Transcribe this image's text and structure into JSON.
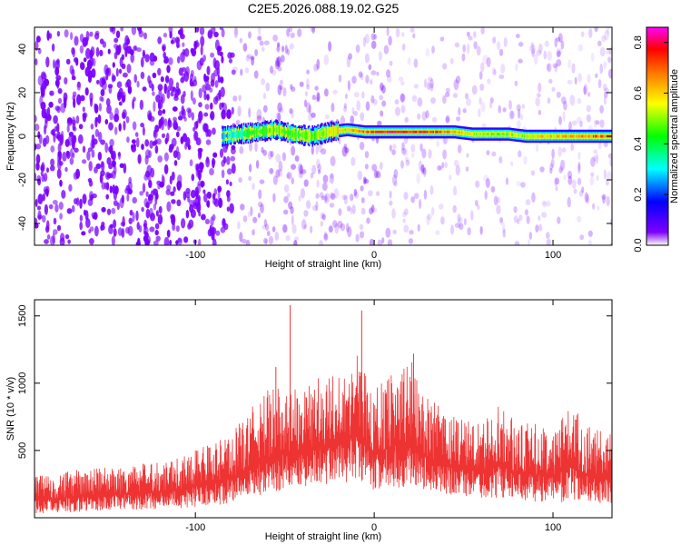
{
  "title": "C2E5.2026.088.19.02.G25",
  "chart_data": [
    {
      "type": "heatmap",
      "xlabel": "Height of straight line (km)",
      "ylabel": "Frequency (Hz)",
      "xlim": [
        -190,
        133
      ],
      "ylim": [
        -50,
        50
      ],
      "x_ticks": [
        -100,
        0,
        100
      ],
      "y_ticks": [
        -40,
        -20,
        0,
        20,
        40
      ],
      "grid": false,
      "colorbar": {
        "label": "Normalized spectral amplitude",
        "range": [
          0.0,
          0.86
        ],
        "ticks": [
          0.0,
          0.2,
          0.4,
          0.6,
          0.8
        ],
        "colors": [
          "#ffffff",
          "#7f00ff",
          "#0000ff",
          "#00ffff",
          "#00ff00",
          "#ffff00",
          "#ff8000",
          "#ff0000",
          "#ff00ff"
        ]
      },
      "signal_track": {
        "x": [
          -85,
          -75,
          -65,
          -55,
          -45,
          -35,
          -25,
          -15,
          -5,
          5,
          15,
          25,
          35,
          45,
          55,
          65,
          75,
          85,
          95,
          105,
          115,
          125,
          133
        ],
        "y": [
          0,
          1,
          2,
          3,
          1,
          0,
          2,
          3,
          2,
          2,
          2,
          2,
          2,
          2,
          1,
          1,
          1,
          0,
          0,
          0,
          0,
          0,
          0
        ],
        "amplitude": [
          0.25,
          0.35,
          0.45,
          0.5,
          0.45,
          0.5,
          0.55,
          0.6,
          0.7,
          0.8,
          0.8,
          0.78,
          0.72,
          0.65,
          0.55,
          0.5,
          0.5,
          0.55,
          0.6,
          0.62,
          0.65,
          0.7,
          0.7
        ]
      }
    },
    {
      "type": "line",
      "xlabel": "Height of straight line (km)",
      "ylabel": "SNR (10 * v/v)",
      "xlim": [
        -190,
        133
      ],
      "ylim": [
        0,
        1620
      ],
      "x_ticks": [
        -100,
        0,
        100
      ],
      "y_ticks": [
        500,
        1000,
        1500
      ],
      "grid": false,
      "color": "#ee3333",
      "envelope": {
        "x": [
          -190,
          -170,
          -150,
          -130,
          -110,
          -100,
          -90,
          -80,
          -70,
          -60,
          -50,
          -40,
          -30,
          -20,
          -10,
          0,
          10,
          20,
          30,
          40,
          50,
          60,
          70,
          80,
          90,
          100,
          110,
          120,
          133
        ],
        "lower": [
          30,
          40,
          50,
          60,
          70,
          80,
          90,
          110,
          140,
          170,
          200,
          230,
          250,
          250,
          260,
          200,
          230,
          200,
          210,
          170,
          160,
          140,
          150,
          130,
          120,
          110,
          120,
          110,
          100
        ],
        "upper": [
          320,
          350,
          380,
          400,
          460,
          520,
          560,
          620,
          800,
          950,
          1000,
          950,
          1050,
          1100,
          1250,
          950,
          1100,
          1200,
          900,
          780,
          750,
          700,
          850,
          700,
          700,
          680,
          850,
          700,
          620
        ]
      },
      "peaks": [
        {
          "x": -47,
          "y": 1580
        },
        {
          "x": -7,
          "y": 1540
        },
        {
          "x": 22,
          "y": 1220
        },
        {
          "x": -55,
          "y": 1120
        }
      ]
    }
  ]
}
